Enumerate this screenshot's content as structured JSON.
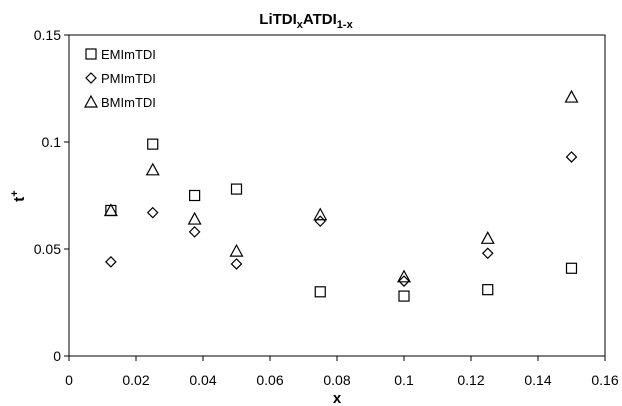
{
  "chart_data": {
    "type": "scatter",
    "title": {
      "main": "LiTDI",
      "sub1": "x",
      "mid": "ATDI",
      "sub2": "1-x"
    },
    "xlabel": "x",
    "ylabel": {
      "main": "t",
      "sup": "+"
    },
    "xlim": [
      0,
      0.16
    ],
    "ylim": [
      0,
      0.15
    ],
    "xticks": [
      "0",
      "0.02",
      "0.04",
      "0.06",
      "0.08",
      "0.1",
      "0.12",
      "0.14",
      "0.16"
    ],
    "yticks": [
      "0",
      "0.05",
      "0.1",
      "0.15"
    ],
    "grid": false,
    "legend_position": "top-left",
    "series": [
      {
        "name": "EMImTDI",
        "marker": "square",
        "points": [
          [
            0.0125,
            0.068
          ],
          [
            0.025,
            0.099
          ],
          [
            0.0375,
            0.075
          ],
          [
            0.05,
            0.078
          ],
          [
            0.075,
            0.03
          ],
          [
            0.1,
            0.028
          ],
          [
            0.125,
            0.031
          ],
          [
            0.15,
            0.041
          ]
        ]
      },
      {
        "name": "PMImTDI",
        "marker": "diamond",
        "points": [
          [
            0.0125,
            0.044
          ],
          [
            0.025,
            0.067
          ],
          [
            0.0375,
            0.058
          ],
          [
            0.05,
            0.043
          ],
          [
            0.075,
            0.063
          ],
          [
            0.1,
            0.035
          ],
          [
            0.125,
            0.048
          ],
          [
            0.15,
            0.093
          ]
        ]
      },
      {
        "name": "BMImTDI",
        "marker": "triangle",
        "points": [
          [
            0.0125,
            0.068
          ],
          [
            0.025,
            0.087
          ],
          [
            0.0375,
            0.064
          ],
          [
            0.05,
            0.049
          ],
          [
            0.075,
            0.066
          ],
          [
            0.1,
            0.037
          ],
          [
            0.125,
            0.055
          ],
          [
            0.15,
            0.121
          ]
        ]
      }
    ]
  }
}
